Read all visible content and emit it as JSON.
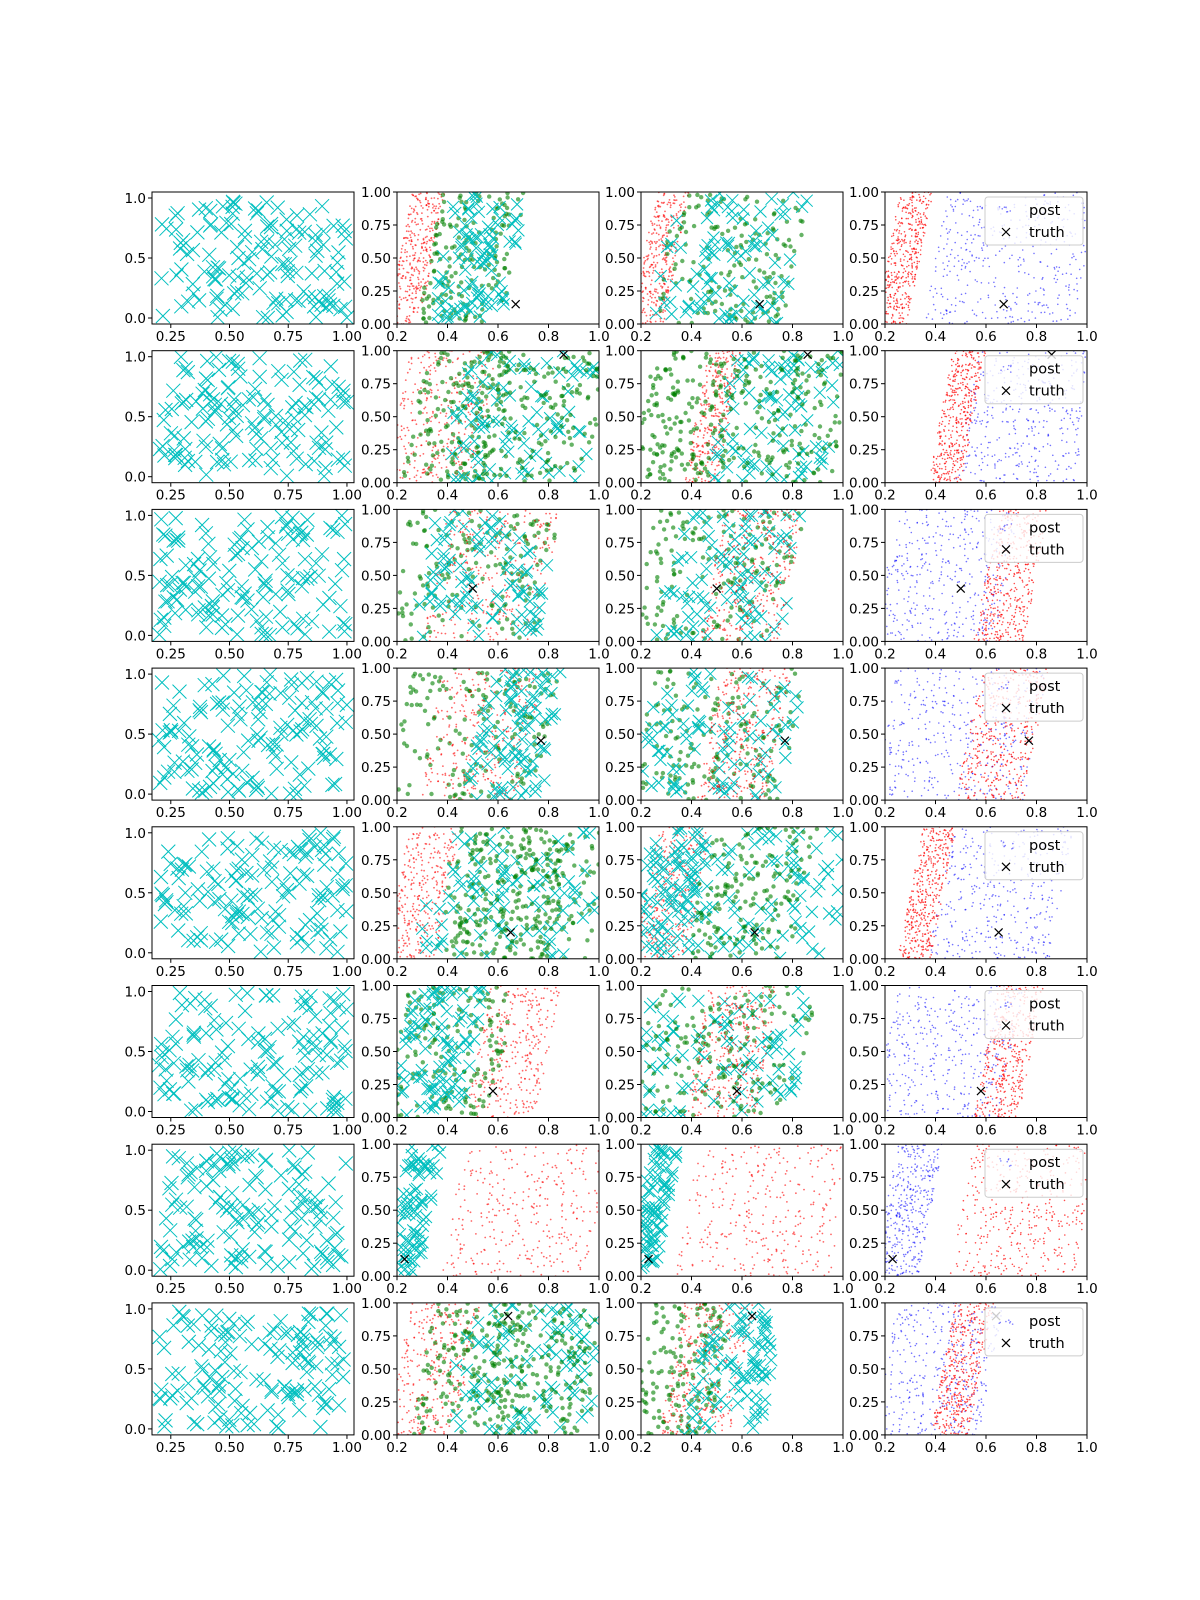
{
  "figure": {
    "rows": 8,
    "cols": 4
  },
  "colors": {
    "prior": "#00bfbf",
    "cyan": "#00bfbf",
    "green": "#008000",
    "red": "#ff0000",
    "blue": "#0000ff",
    "truth": "#000000",
    "axes": "#000000",
    "background": "#ffffff"
  },
  "axes_ticks": {
    "col0_x": [
      "0.25",
      "0.50",
      "0.75",
      "1.00"
    ],
    "col0_x_values": [
      0.25,
      0.5,
      0.75,
      1.0
    ],
    "col0_y": [
      "0.0",
      "0.5",
      "1.0"
    ],
    "col0_y_values": [
      0.0,
      0.5,
      1.0
    ],
    "other_x": [
      "0.2",
      "0.4",
      "0.6",
      "0.8",
      "1.0"
    ],
    "other_x_values": [
      0.2,
      0.4,
      0.6,
      0.8,
      1.0
    ],
    "other_y": [
      "0.00",
      "0.25",
      "0.50",
      "0.75",
      "1.00"
    ],
    "other_y_values": [
      0.0,
      0.25,
      0.5,
      0.75,
      1.0
    ]
  },
  "legend": {
    "post_label": "post",
    "truth_label": "truth"
  },
  "chart_data": {
    "type": "scatter",
    "grid": false,
    "legend_placement": "upper right (column 4 panels)",
    "columns": [
      {
        "content": "prior samples, cyan x markers",
        "xlim": [
          0.17,
          1.03
        ],
        "ylim": [
          -0.05,
          1.05
        ]
      },
      {
        "content": "cyan x markers, green dots, red dots, truth x",
        "xlim": [
          0.2,
          1.0
        ],
        "ylim": [
          0.0,
          1.0
        ]
      },
      {
        "content": "cyan x markers, green dots, red dots, truth x",
        "xlim": [
          0.2,
          1.0
        ],
        "ylim": [
          0.0,
          1.0
        ]
      },
      {
        "content": "blue dots (post), red dots, truth x",
        "xlim": [
          0.2,
          1.0
        ],
        "ylim": [
          0.0,
          1.0
        ]
      }
    ],
    "rows": [
      {
        "truth": [
          0.67,
          0.15
        ],
        "red_band": [
          0.21,
          0.34
        ],
        "blue_band": [
          0.4,
          1.0
        ],
        "c2": [
          [
            "red",
            0.21,
            0.34
          ],
          [
            "green",
            0.33,
            0.66
          ],
          [
            "cyan",
            0.38,
            0.66
          ]
        ],
        "c3": [
          [
            "red",
            0.21,
            0.34
          ],
          [
            "green",
            0.29,
            0.82
          ],
          [
            "cyan",
            0.29,
            0.82
          ]
        ]
      },
      {
        "truth": [
          0.86,
          0.97
        ],
        "red_band": [
          0.42,
          0.55
        ],
        "blue_band": [
          0.52,
          1.0
        ],
        "c2": [
          [
            "red",
            0.2,
            0.55
          ],
          [
            "green",
            0.27,
            0.6
          ],
          [
            "cyan",
            0.42,
            1.0
          ],
          [
            "green",
            0.55,
            1.0
          ]
        ],
        "c3": [
          [
            "red",
            0.42,
            0.55
          ],
          [
            "green",
            0.2,
            0.52
          ],
          [
            "cyan",
            0.52,
            1.0
          ],
          [
            "green",
            0.52,
            1.0
          ]
        ]
      },
      {
        "truth": [
          0.5,
          0.4
        ],
        "red_band": [
          0.6,
          0.8
        ],
        "blue_band": [
          0.2,
          0.68
        ],
        "c2": [
          [
            "green",
            0.2,
            0.8
          ],
          [
            "red",
            0.35,
            0.8
          ],
          [
            "cyan",
            0.3,
            0.8
          ]
        ],
        "c3": [
          [
            "green",
            0.2,
            0.8
          ],
          [
            "cyan",
            0.3,
            0.8
          ],
          [
            "red",
            0.48,
            0.8
          ]
        ]
      },
      {
        "truth": [
          0.77,
          0.45
        ],
        "red_band": [
          0.53,
          0.8
        ],
        "blue_band": [
          0.2,
          0.8
        ],
        "c2": [
          [
            "green",
            0.2,
            0.8
          ],
          [
            "red",
            0.33,
            0.73
          ],
          [
            "cyan",
            0.52,
            0.82
          ]
        ],
        "c3": [
          [
            "green",
            0.2,
            0.8
          ],
          [
            "cyan",
            0.2,
            0.8
          ],
          [
            "red",
            0.47,
            0.75
          ]
        ]
      },
      {
        "truth": [
          0.65,
          0.2
        ],
        "red_band": [
          0.3,
          0.43
        ],
        "blue_band": [
          0.42,
          0.9
        ],
        "c2": [
          [
            "red",
            0.2,
            0.4
          ],
          [
            "green",
            0.38,
            1.0
          ],
          [
            "cyan",
            0.32,
            1.0
          ],
          [
            "green",
            0.45,
            0.85
          ]
        ],
        "c3": [
          [
            "red",
            0.22,
            0.43
          ],
          [
            "cyan",
            0.2,
            0.42
          ],
          [
            "cyan",
            0.42,
            1.0
          ],
          [
            "green",
            0.42,
            0.85
          ]
        ]
      },
      {
        "truth": [
          0.58,
          0.2
        ],
        "red_band": [
          0.6,
          0.78
        ],
        "blue_band": [
          0.2,
          0.7
        ],
        "c2": [
          [
            "red",
            0.52,
            0.8
          ],
          [
            "green",
            0.2,
            0.62
          ],
          [
            "cyan",
            0.22,
            0.5
          ]
        ],
        "c3": [
          [
            "cyan",
            0.2,
            0.85
          ],
          [
            "green",
            0.2,
            0.85
          ],
          [
            "red",
            0.42,
            0.7
          ]
        ]
      },
      {
        "truth": [
          0.23,
          0.13
        ],
        "red_band": [
          0.5,
          1.0
        ],
        "blue_band": [
          0.2,
          0.38
        ],
        "c2": [
          [
            "cyan",
            0.2,
            0.33
          ],
          [
            "red",
            0.42,
            1.0
          ]
        ],
        "c3": [
          [
            "cyan",
            0.2,
            0.3
          ],
          [
            "red",
            0.38,
            1.0
          ]
        ]
      },
      {
        "truth": [
          0.64,
          0.9
        ],
        "red_band": [
          0.43,
          0.58
        ],
        "blue_band": [
          0.2,
          0.62
        ],
        "c2": [
          [
            "red",
            0.2,
            0.48
          ],
          [
            "green",
            0.3,
            0.72
          ],
          [
            "cyan",
            0.43,
            1.0
          ],
          [
            "green",
            0.52,
            1.0
          ]
        ],
        "c3": [
          [
            "green",
            0.2,
            0.52
          ],
          [
            "red",
            0.32,
            0.6
          ],
          [
            "cyan",
            0.42,
            0.72
          ]
        ]
      }
    ]
  }
}
